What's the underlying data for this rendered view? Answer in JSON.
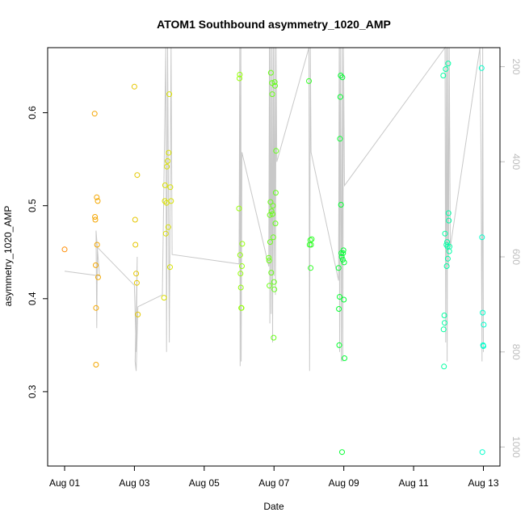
{
  "chart_data": {
    "type": "scatter",
    "title": "ATOM1 Southbound asymmetry_1020_AMP",
    "xlabel": "Date",
    "ylabel": "asymmetry_1020_AMP",
    "xticks": [
      "Aug 01",
      "Aug 03",
      "Aug 05",
      "Aug 07",
      "Aug 09",
      "Aug 11",
      "Aug 13"
    ],
    "xlim": [
      0.0,
      12.9
    ],
    "ylim": [
      0.22,
      0.67
    ],
    "yticks": [
      0.3,
      0.4,
      0.5,
      0.6
    ],
    "y2lim": [
      1040,
      160
    ],
    "y2ticks": [
      200,
      400,
      600,
      800,
      1000
    ],
    "color_scale": {
      "start": "#ff8c00",
      "mid": "#ccff00",
      "mid2": "#00ff33",
      "end": "#00ffcc"
    },
    "points": [
      {
        "x": 0.0,
        "y": 0.453
      },
      {
        "x": 0.86,
        "y": 0.599
      },
      {
        "x": 0.87,
        "y": 0.488
      },
      {
        "x": 0.88,
        "y": 0.485
      },
      {
        "x": 0.89,
        "y": 0.436
      },
      {
        "x": 0.9,
        "y": 0.39
      },
      {
        "x": 0.9,
        "y": 0.329
      },
      {
        "x": 0.92,
        "y": 0.509
      },
      {
        "x": 0.93,
        "y": 0.458
      },
      {
        "x": 0.95,
        "y": 0.505
      },
      {
        "x": 0.96,
        "y": 0.423
      },
      {
        "x": 2.0,
        "y": 0.628
      },
      {
        "x": 2.02,
        "y": 0.485
      },
      {
        "x": 2.03,
        "y": 0.458
      },
      {
        "x": 2.05,
        "y": 0.427
      },
      {
        "x": 2.07,
        "y": 0.417
      },
      {
        "x": 2.08,
        "y": 0.533
      },
      {
        "x": 2.1,
        "y": 0.383
      },
      {
        "x": 2.85,
        "y": 0.401
      },
      {
        "x": 2.87,
        "y": 0.505
      },
      {
        "x": 2.88,
        "y": 0.522
      },
      {
        "x": 2.9,
        "y": 0.47
      },
      {
        "x": 2.92,
        "y": 0.503
      },
      {
        "x": 2.93,
        "y": 0.542
      },
      {
        "x": 2.95,
        "y": 0.548
      },
      {
        "x": 2.97,
        "y": 0.477
      },
      {
        "x": 2.98,
        "y": 0.557
      },
      {
        "x": 3.0,
        "y": 0.62
      },
      {
        "x": 3.02,
        "y": 0.434
      },
      {
        "x": 3.03,
        "y": 0.52
      },
      {
        "x": 3.05,
        "y": 0.505
      },
      {
        "x": 5.0,
        "y": 0.497
      },
      {
        "x": 5.01,
        "y": 0.637
      },
      {
        "x": 5.02,
        "y": 0.641
      },
      {
        "x": 5.03,
        "y": 0.447
      },
      {
        "x": 5.04,
        "y": 0.427
      },
      {
        "x": 5.05,
        "y": 0.412
      },
      {
        "x": 5.06,
        "y": 0.39
      },
      {
        "x": 5.07,
        "y": 0.39
      },
      {
        "x": 5.08,
        "y": 0.435
      },
      {
        "x": 5.09,
        "y": 0.459
      },
      {
        "x": 5.85,
        "y": 0.444
      },
      {
        "x": 5.86,
        "y": 0.441
      },
      {
        "x": 5.87,
        "y": 0.414
      },
      {
        "x": 5.88,
        "y": 0.49
      },
      {
        "x": 5.89,
        "y": 0.461
      },
      {
        "x": 5.9,
        "y": 0.504
      },
      {
        "x": 5.91,
        "y": 0.643
      },
      {
        "x": 5.92,
        "y": 0.428
      },
      {
        "x": 5.93,
        "y": 0.494
      },
      {
        "x": 5.94,
        "y": 0.632
      },
      {
        "x": 5.95,
        "y": 0.62
      },
      {
        "x": 5.96,
        "y": 0.491
      },
      {
        "x": 5.97,
        "y": 0.5
      },
      {
        "x": 5.98,
        "y": 0.466
      },
      {
        "x": 5.99,
        "y": 0.358
      },
      {
        "x": 6.0,
        "y": 0.418
      },
      {
        "x": 6.01,
        "y": 0.41
      },
      {
        "x": 6.02,
        "y": 0.633
      },
      {
        "x": 6.03,
        "y": 0.629
      },
      {
        "x": 6.04,
        "y": 0.481
      },
      {
        "x": 6.05,
        "y": 0.514
      },
      {
        "x": 6.06,
        "y": 0.559
      },
      {
        "x": 7.0,
        "y": 0.634
      },
      {
        "x": 7.02,
        "y": 0.458
      },
      {
        "x": 7.04,
        "y": 0.463
      },
      {
        "x": 7.05,
        "y": 0.433
      },
      {
        "x": 7.06,
        "y": 0.458
      },
      {
        "x": 7.08,
        "y": 0.464
      },
      {
        "x": 7.85,
        "y": 0.433
      },
      {
        "x": 7.86,
        "y": 0.389
      },
      {
        "x": 7.87,
        "y": 0.35
      },
      {
        "x": 7.88,
        "y": 0.402
      },
      {
        "x": 7.89,
        "y": 0.572
      },
      {
        "x": 7.9,
        "y": 0.617
      },
      {
        "x": 7.91,
        "y": 0.64
      },
      {
        "x": 7.92,
        "y": 0.501
      },
      {
        "x": 7.93,
        "y": 0.449
      },
      {
        "x": 7.94,
        "y": 0.445
      },
      {
        "x": 7.95,
        "y": 0.235
      },
      {
        "x": 7.96,
        "y": 0.638
      },
      {
        "x": 7.97,
        "y": 0.442
      },
      {
        "x": 7.98,
        "y": 0.449
      },
      {
        "x": 7.99,
        "y": 0.452
      },
      {
        "x": 8.0,
        "y": 0.399
      },
      {
        "x": 8.01,
        "y": 0.439
      },
      {
        "x": 8.02,
        "y": 0.336
      },
      {
        "x": 10.85,
        "y": 0.64
      },
      {
        "x": 10.86,
        "y": 0.367
      },
      {
        "x": 10.87,
        "y": 0.327
      },
      {
        "x": 10.88,
        "y": 0.382
      },
      {
        "x": 10.89,
        "y": 0.374
      },
      {
        "x": 10.9,
        "y": 0.47
      },
      {
        "x": 10.92,
        "y": 0.647
      },
      {
        "x": 10.94,
        "y": 0.458
      },
      {
        "x": 10.95,
        "y": 0.435
      },
      {
        "x": 10.96,
        "y": 0.461
      },
      {
        "x": 10.97,
        "y": 0.456
      },
      {
        "x": 10.98,
        "y": 0.443
      },
      {
        "x": 10.99,
        "y": 0.653
      },
      {
        "x": 11.0,
        "y": 0.492
      },
      {
        "x": 11.01,
        "y": 0.484
      },
      {
        "x": 11.02,
        "y": 0.451
      },
      {
        "x": 11.03,
        "y": 0.456
      },
      {
        "x": 11.95,
        "y": 0.648
      },
      {
        "x": 11.96,
        "y": 0.466
      },
      {
        "x": 11.97,
        "y": 0.235
      },
      {
        "x": 11.98,
        "y": 0.385
      },
      {
        "x": 11.99,
        "y": 0.35
      },
      {
        "x": 12.0,
        "y": 0.349
      },
      {
        "x": 12.01,
        "y": 0.372
      }
    ],
    "depth_line": [
      [
        0.0,
        630
      ],
      [
        1.0,
        640
      ],
      [
        0.9,
        545
      ],
      [
        0.92,
        750
      ],
      [
        0.94,
        580
      ],
      [
        2.0,
        660
      ],
      [
        2.05,
        800
      ],
      [
        2.08,
        600
      ],
      [
        2.02,
        820
      ],
      [
        2.05,
        840
      ],
      [
        2.1,
        705
      ],
      [
        2.8,
        680
      ],
      [
        2.9,
        150
      ],
      [
        2.92,
        800
      ],
      [
        2.95,
        150
      ],
      [
        3.0,
        780
      ],
      [
        3.05,
        150
      ],
      [
        3.08,
        595
      ],
      [
        5.0,
        615
      ],
      [
        5.02,
        150
      ],
      [
        5.03,
        830
      ],
      [
        5.05,
        150
      ],
      [
        5.06,
        820
      ],
      [
        5.08,
        380
      ],
      [
        5.85,
        620
      ],
      [
        5.87,
        150
      ],
      [
        5.88,
        740
      ],
      [
        5.9,
        150
      ],
      [
        5.92,
        720
      ],
      [
        5.94,
        150
      ],
      [
        5.96,
        780
      ],
      [
        5.98,
        150
      ],
      [
        6.0,
        640
      ],
      [
        6.02,
        150
      ],
      [
        6.04,
        680
      ],
      [
        6.06,
        150
      ],
      [
        6.08,
        400
      ],
      [
        7.0,
        150
      ],
      [
        7.02,
        840
      ],
      [
        7.04,
        150
      ],
      [
        7.06,
        380
      ],
      [
        7.85,
        650
      ],
      [
        7.87,
        150
      ],
      [
        7.88,
        800
      ],
      [
        7.9,
        150
      ],
      [
        7.93,
        820
      ],
      [
        7.95,
        150
      ],
      [
        7.97,
        820
      ],
      [
        7.99,
        150
      ],
      [
        8.02,
        450
      ],
      [
        10.9,
        150
      ],
      [
        10.92,
        780
      ],
      [
        10.94,
        150
      ],
      [
        10.96,
        820
      ],
      [
        10.98,
        150
      ],
      [
        11.0,
        620
      ],
      [
        11.02,
        150
      ],
      [
        11.05,
        580
      ],
      [
        11.9,
        150
      ],
      [
        11.93,
        380
      ],
      [
        11.96,
        820
      ],
      [
        11.98,
        150
      ],
      [
        12.0,
        800
      ]
    ]
  }
}
